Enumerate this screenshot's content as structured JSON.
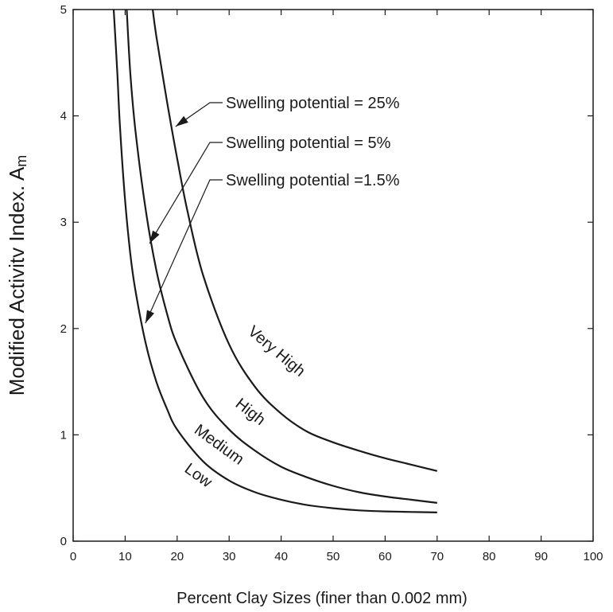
{
  "chart_data": {
    "type": "line",
    "xlabel": "Percent Clay Sizes  (finer than 0.002 mm)",
    "ylabel": "Modified Activitv Index. A",
    "ylabel_subscript": "m",
    "xlim": [
      0,
      100
    ],
    "ylim": [
      0,
      5
    ],
    "x_ticks": [
      0,
      10,
      20,
      30,
      40,
      50,
      60,
      70,
      80,
      90,
      100
    ],
    "y_ticks": [
      0,
      1,
      2,
      3,
      4,
      5
    ],
    "x_tick_labels": [
      "0",
      "10",
      "20",
      "30",
      "40",
      "50",
      "60",
      "70",
      "80",
      "90",
      "100"
    ],
    "y_tick_labels": [
      "0",
      "1",
      "2",
      "3",
      "4",
      "5"
    ],
    "grid": false,
    "series": [
      {
        "name": "Swelling potential = 25%",
        "x": [
          15.3,
          16,
          18,
          20,
          22,
          25,
          30,
          35,
          40,
          45,
          50,
          55,
          60,
          65,
          70
        ],
        "y": [
          5.0,
          4.75,
          4.15,
          3.6,
          3.1,
          2.5,
          1.85,
          1.45,
          1.2,
          1.03,
          0.93,
          0.85,
          0.78,
          0.72,
          0.66
        ]
      },
      {
        "name": "Swelling potential = 5%",
        "x": [
          10.3,
          11,
          12,
          14,
          16,
          18,
          20,
          25,
          30,
          35,
          40,
          45,
          50,
          55,
          60,
          65,
          70
        ],
        "y": [
          5.0,
          4.4,
          3.85,
          3.1,
          2.55,
          2.15,
          1.85,
          1.35,
          1.05,
          0.85,
          0.7,
          0.6,
          0.52,
          0.46,
          0.42,
          0.39,
          0.36
        ]
      },
      {
        "name": "Swelling potential =1.5%",
        "x": [
          7.8,
          8.5,
          9,
          10,
          11,
          12,
          14,
          16,
          18,
          20,
          25,
          30,
          35,
          40,
          45,
          50,
          55,
          60,
          65,
          70
        ],
        "y": [
          5.0,
          4.4,
          3.9,
          3.2,
          2.7,
          2.35,
          1.85,
          1.5,
          1.25,
          1.05,
          0.75,
          0.57,
          0.46,
          0.39,
          0.34,
          0.31,
          0.29,
          0.28,
          0.275,
          0.27
        ]
      }
    ],
    "annotations": [
      {
        "text": "Swelling potential = 25%",
        "points_to": [
          19.7,
          3.9
        ]
      },
      {
        "text": "Swelling potential = 5%",
        "points_to": [
          14.7,
          2.8
        ]
      },
      {
        "text": "Swelling potential =1.5%",
        "points_to": [
          13.9,
          2.05
        ]
      }
    ],
    "regions": [
      {
        "text": "Very High",
        "at": [
          38.5,
          1.75
        ],
        "rotate": 40
      },
      {
        "text": "High",
        "at": [
          33.5,
          1.18
        ],
        "rotate": 38
      },
      {
        "text": "Medium",
        "at": [
          27.5,
          0.87
        ],
        "rotate": 36
      },
      {
        "text": "Low",
        "at": [
          23.5,
          0.58
        ],
        "rotate": 36
      }
    ]
  }
}
